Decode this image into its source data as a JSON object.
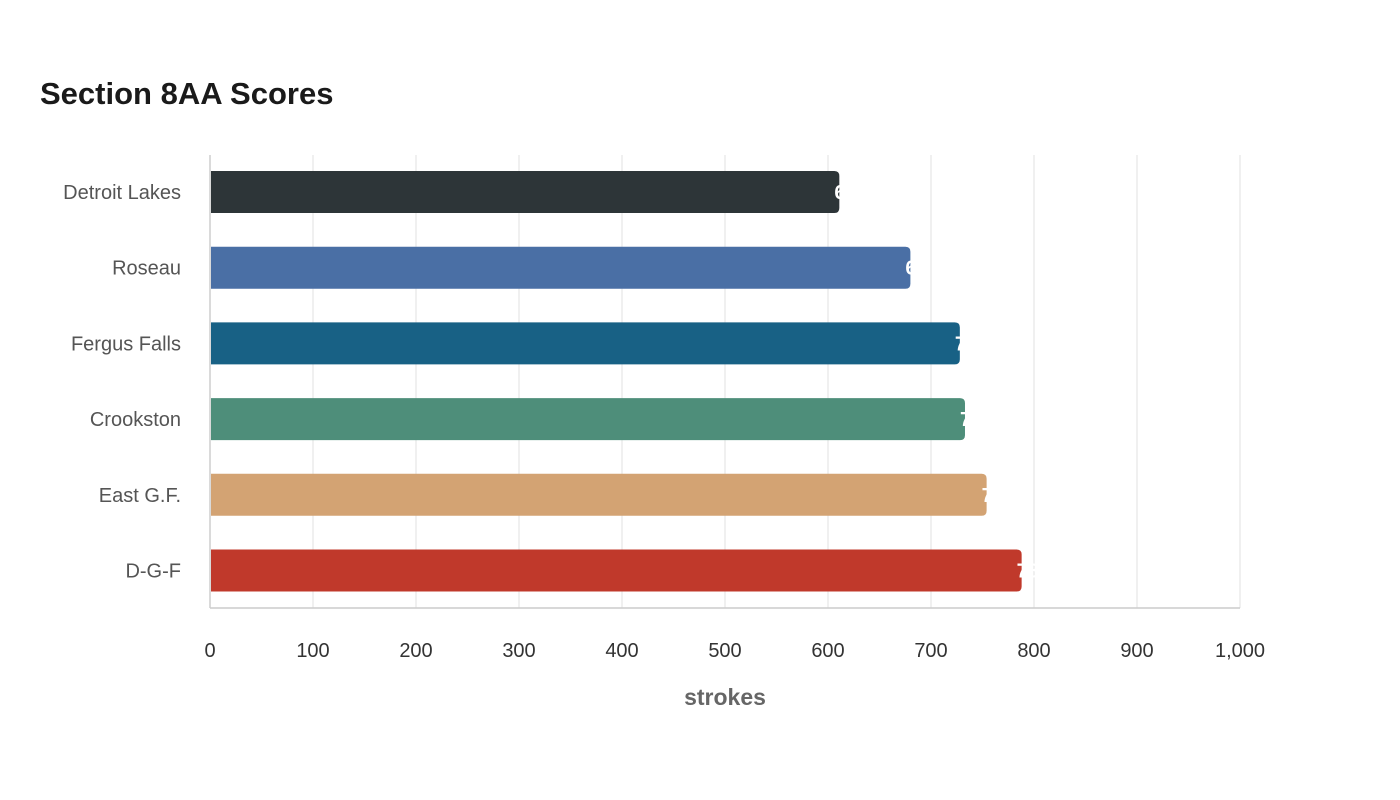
{
  "chart_data": {
    "type": "bar",
    "orientation": "horizontal",
    "title": "Section 8AA Scores",
    "xlabel": "strokes",
    "ylabel": "",
    "categories": [
      "Detroit Lakes",
      "Roseau",
      "Fergus Falls",
      "Crookston",
      "East G.F.",
      "D-G-F"
    ],
    "values": [
      611,
      680,
      728,
      733,
      754,
      788
    ],
    "colors": [
      "#2d3538",
      "#4a6fa5",
      "#186185",
      "#4e8e7a",
      "#d3a373",
      "#c0392b"
    ],
    "xlim": [
      0,
      1000
    ],
    "x_ticks": [
      0,
      100,
      200,
      300,
      400,
      500,
      600,
      700,
      800,
      900,
      1000
    ],
    "x_tick_labels": [
      "0",
      "100",
      "200",
      "300",
      "400",
      "500",
      "600",
      "700",
      "800",
      "900",
      "1,000"
    ],
    "grid": true,
    "data_labels": true,
    "legend": "none"
  }
}
